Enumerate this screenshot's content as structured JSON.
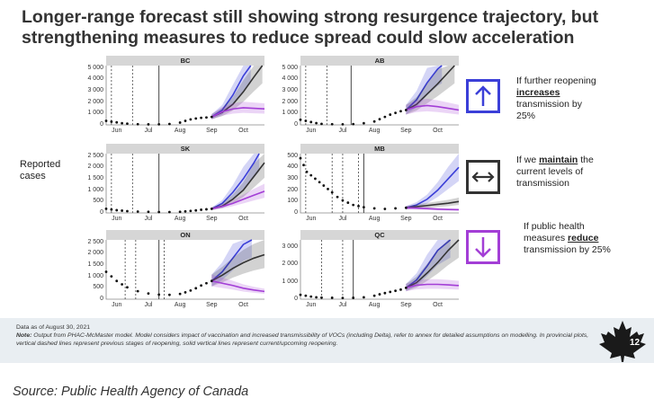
{
  "title": {
    "line1": "Longer-range forecast still showing strong resurgence trajectory, but",
    "line2": "strengthening measures to reduce spread could slow acceleration"
  },
  "reported_label": "Reported cases",
  "colors": {
    "increase": "#3b3fd8",
    "maintain": "#333333",
    "reduce": "#a33ed6",
    "observed": "#111111",
    "strip": "#d6d6d6",
    "footer_bg": "#e9eef2"
  },
  "scenarios": [
    {
      "icon": "arrow-up-icon",
      "color": "#3b3fd8",
      "pre": "If further reopening",
      "key": "increases",
      "post": "transmission by 25%"
    },
    {
      "icon": "arrow-left-right-icon",
      "color": "#333333",
      "pre": "If we",
      "key": "maintain",
      "post": "the current levels of transmission"
    },
    {
      "icon": "arrow-down-icon",
      "color": "#a33ed6",
      "pre": "If public health measures",
      "key": "reduce",
      "post": "transmission by 25%"
    }
  ],
  "chart_data": [
    {
      "type": "line",
      "title": "BC",
      "x_ticks": [
        "Jun",
        "Jul",
        "Aug",
        "Sep",
        "Oct"
      ],
      "y_ticks": [
        "5 000",
        "4 000",
        "3 000",
        "2 000",
        "1 000",
        "0"
      ],
      "ylim": [
        0,
        5200
      ],
      "series": [
        {
          "name": "observed",
          "type": "scatter",
          "x": [
            0,
            5,
            10,
            15,
            20,
            30,
            40,
            50,
            60,
            70,
            75,
            80,
            85,
            90,
            95,
            100
          ],
          "values": [
            350,
            280,
            220,
            150,
            110,
            60,
            45,
            50,
            80,
            200,
            350,
            480,
            560,
            620,
            650,
            700
          ]
        },
        {
          "name": "increases",
          "x": [
            100,
            110,
            120,
            130,
            137
          ],
          "values": [
            700,
            1300,
            2600,
            4300,
            5200
          ]
        },
        {
          "name": "maintain",
          "x": [
            100,
            110,
            120,
            130,
            140,
            148
          ],
          "values": [
            700,
            1100,
            1800,
            2900,
            4200,
            5200
          ]
        },
        {
          "name": "reduces",
          "x": [
            100,
            110,
            120,
            130,
            140,
            150
          ],
          "values": [
            700,
            1150,
            1400,
            1500,
            1450,
            1400
          ]
        }
      ]
    },
    {
      "type": "line",
      "title": "AB",
      "x_ticks": [
        "Jun",
        "Jul",
        "Aug",
        "Sep",
        "Oct"
      ],
      "y_ticks": [
        "5 000",
        "4 000",
        "3 000",
        "2 000",
        "1 000",
        "0"
      ],
      "ylim": [
        0,
        5200
      ],
      "series": [
        {
          "name": "observed",
          "type": "scatter",
          "x": [
            0,
            5,
            10,
            15,
            20,
            30,
            40,
            50,
            60,
            70,
            75,
            80,
            85,
            90,
            95,
            100
          ],
          "values": [
            450,
            350,
            250,
            160,
            90,
            60,
            50,
            70,
            150,
            300,
            500,
            700,
            900,
            1050,
            1200,
            1300
          ]
        },
        {
          "name": "increases",
          "x": [
            100,
            110,
            120,
            130,
            134
          ],
          "values": [
            1300,
            2200,
            3700,
            4900,
            5200
          ]
        },
        {
          "name": "maintain",
          "x": [
            100,
            110,
            120,
            130,
            140,
            146
          ],
          "values": [
            1300,
            1800,
            2700,
            3600,
            4600,
            5200
          ]
        },
        {
          "name": "reduces",
          "x": [
            100,
            110,
            120,
            130,
            140,
            150
          ],
          "values": [
            1300,
            1600,
            1700,
            1600,
            1450,
            1300
          ]
        }
      ]
    },
    {
      "type": "line",
      "title": "SK",
      "x_ticks": [
        "Jun",
        "Jul",
        "Aug",
        "Sep",
        "Oct"
      ],
      "y_ticks": [
        "2 500",
        "2 000",
        "1 500",
        "1 000",
        "500",
        "0"
      ],
      "ylim": [
        0,
        2600
      ],
      "series": [
        {
          "name": "observed",
          "type": "scatter",
          "x": [
            0,
            5,
            10,
            15,
            20,
            30,
            40,
            50,
            60,
            70,
            75,
            80,
            85,
            90,
            95,
            100
          ],
          "values": [
            180,
            150,
            120,
            100,
            80,
            60,
            50,
            40,
            40,
            50,
            70,
            90,
            110,
            140,
            160,
            180
          ]
        },
        {
          "name": "increases",
          "x": [
            100,
            110,
            120,
            130,
            140,
            145
          ],
          "values": [
            180,
            420,
            900,
            1500,
            2200,
            2600
          ]
        },
        {
          "name": "maintain",
          "x": [
            100,
            110,
            120,
            130,
            140,
            150
          ],
          "values": [
            180,
            300,
            600,
            1000,
            1600,
            2200
          ]
        },
        {
          "name": "reduces",
          "x": [
            100,
            110,
            120,
            130,
            140,
            150
          ],
          "values": [
            180,
            280,
            420,
            600,
            780,
            950
          ]
        }
      ]
    },
    {
      "type": "line",
      "title": "MB",
      "x_ticks": [
        "Jun",
        "Jul",
        "Aug",
        "Sep",
        "Oct"
      ],
      "y_ticks": [
        "500",
        "400",
        "300",
        "200",
        "100",
        "0"
      ],
      "ylim": [
        0,
        520
      ],
      "series": [
        {
          "name": "observed",
          "type": "scatter",
          "x": [
            0,
            3,
            6,
            10,
            14,
            18,
            22,
            26,
            30,
            35,
            40,
            45,
            50,
            55,
            60,
            70,
            80,
            90,
            100
          ],
          "values": [
            480,
            420,
            360,
            330,
            300,
            270,
            240,
            210,
            180,
            140,
            110,
            90,
            70,
            60,
            50,
            40,
            35,
            40,
            45
          ]
        },
        {
          "name": "increases",
          "x": [
            100,
            110,
            120,
            130,
            140,
            150
          ],
          "values": [
            45,
            70,
            120,
            200,
            300,
            400
          ]
        },
        {
          "name": "maintain",
          "x": [
            100,
            110,
            120,
            130,
            140,
            150
          ],
          "values": [
            45,
            55,
            65,
            75,
            85,
            100
          ]
        },
        {
          "name": "reduces",
          "x": [
            100,
            110,
            120,
            130,
            140,
            150
          ],
          "values": [
            45,
            42,
            38,
            33,
            30,
            28
          ]
        }
      ]
    },
    {
      "type": "line",
      "title": "ON",
      "x_ticks": [
        "Jun",
        "Jul",
        "Aug",
        "Sep",
        "Oct"
      ],
      "y_ticks": [
        "2 500",
        "2 000",
        "1 500",
        "1 000",
        "500",
        "0"
      ],
      "ylim": [
        0,
        2600
      ],
      "series": [
        {
          "name": "observed",
          "type": "scatter",
          "x": [
            0,
            5,
            10,
            15,
            20,
            30,
            40,
            50,
            60,
            70,
            75,
            80,
            85,
            90,
            95,
            100
          ],
          "values": [
            1200,
            1000,
            800,
            650,
            520,
            350,
            250,
            200,
            190,
            230,
            300,
            380,
            480,
            600,
            700,
            800
          ]
        },
        {
          "name": "increases",
          "x": [
            100,
            110,
            120,
            130,
            138
          ],
          "values": [
            800,
            1200,
            1800,
            2400,
            2600
          ]
        },
        {
          "name": "maintain",
          "x": [
            100,
            110,
            120,
            130,
            140,
            150
          ],
          "values": [
            800,
            1050,
            1350,
            1600,
            1800,
            1950
          ]
        },
        {
          "name": "reduces",
          "x": [
            100,
            110,
            120,
            130,
            140,
            150
          ],
          "values": [
            800,
            700,
            600,
            480,
            400,
            340
          ]
        }
      ]
    },
    {
      "type": "line",
      "title": "QC",
      "x_ticks": [
        "Jun",
        "Jul",
        "Aug",
        "Sep",
        "Oct"
      ],
      "y_ticks": [
        "3 000",
        "2 000",
        "1 000",
        "0"
      ],
      "ylim": [
        0,
        3400
      ],
      "series": [
        {
          "name": "observed",
          "type": "scatter",
          "x": [
            0,
            5,
            10,
            15,
            20,
            30,
            40,
            50,
            60,
            70,
            75,
            80,
            85,
            90,
            95,
            100
          ],
          "values": [
            250,
            200,
            150,
            110,
            90,
            80,
            70,
            80,
            110,
            200,
            280,
            350,
            420,
            480,
            550,
            650
          ]
        },
        {
          "name": "increases",
          "x": [
            100,
            110,
            120,
            130,
            140,
            142
          ],
          "values": [
            650,
            1100,
            1900,
            2800,
            3300,
            3400
          ]
        },
        {
          "name": "maintain",
          "x": [
            100,
            110,
            120,
            130,
            140,
            150
          ],
          "values": [
            650,
            950,
            1500,
            2100,
            2800,
            3400
          ]
        },
        {
          "name": "reduces",
          "x": [
            100,
            110,
            120,
            130,
            140,
            150
          ],
          "values": [
            650,
            800,
            850,
            850,
            820,
            780
          ]
        }
      ]
    }
  ],
  "footer": {
    "data_as_of": "Data as of August 30, 2021",
    "note_label": "Note:",
    "note_text": "Output from PHAC-McMaster model. Model considers impact of vaccination and increased transmissibility of VOCs (including Delta), refer to annex for detailed assumptions on modelling. In provincial plots, vertical dashed lines represent previous stages of reopening, solid vertical lines represent current/upcoming reopening.",
    "page_number": "12"
  },
  "source": "Source: Public Health Agency of Canada"
}
